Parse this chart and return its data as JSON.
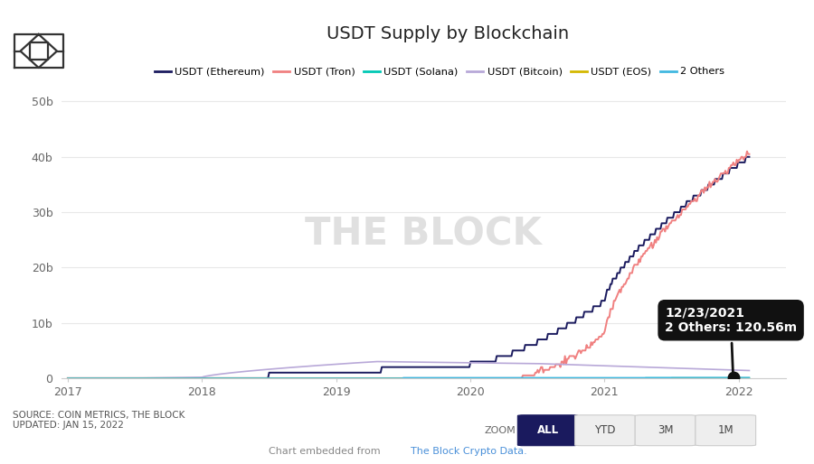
{
  "title": "USDT Supply by Blockchain",
  "background_color": "#ffffff",
  "plot_bg_color": "#ffffff",
  "grid_color": "#e8e8e8",
  "title_fontsize": 14,
  "watermark": "THE BLOCK",
  "source_text": "SOURCE: COIN METRICS, THE BLOCK\nUPDATED: JAN 15, 2022",
  "footer_link_color": "#4a90d9",
  "top_bar_color": "#9B59B6",
  "legend_entries": [
    {
      "label": "USDT (Ethereum)",
      "color": "#1a1a5e"
    },
    {
      "label": "USDT (Tron)",
      "color": "#f08080"
    },
    {
      "label": "USDT (Solana)",
      "color": "#00c8b4"
    },
    {
      "label": "USDT (Bitcoin)",
      "color": "#b8a8d8"
    },
    {
      "label": "USDT (EOS)",
      "color": "#d4b800"
    },
    {
      "label": "2 Others",
      "color": "#40b8e0"
    }
  ],
  "tooltip_date": "12/23/2021",
  "tooltip_label": "2 Others: 120.56m",
  "tooltip_bg": "#111111",
  "tooltip_fg": "#ffffff",
  "ylim": [
    0,
    52000000000
  ],
  "yticks": [
    0,
    10000000000,
    20000000000,
    30000000000,
    40000000000,
    50000000000
  ],
  "ytick_labels": [
    "0",
    "10b",
    "20b",
    "30b",
    "40b",
    "50b"
  ],
  "xlim_start": 2016.95,
  "xlim_end": 2022.35,
  "xticks": [
    2017,
    2018,
    2019,
    2020,
    2021,
    2022
  ],
  "zoom_buttons": [
    "ALL",
    "YTD",
    "3M",
    "1M"
  ],
  "zoom_active": "ALL",
  "zoom_active_bg": "#1a1a5e",
  "zoom_inactive_bg": "#eeeeee",
  "zoom_text_active": "#ffffff",
  "zoom_text_inactive": "#444444"
}
